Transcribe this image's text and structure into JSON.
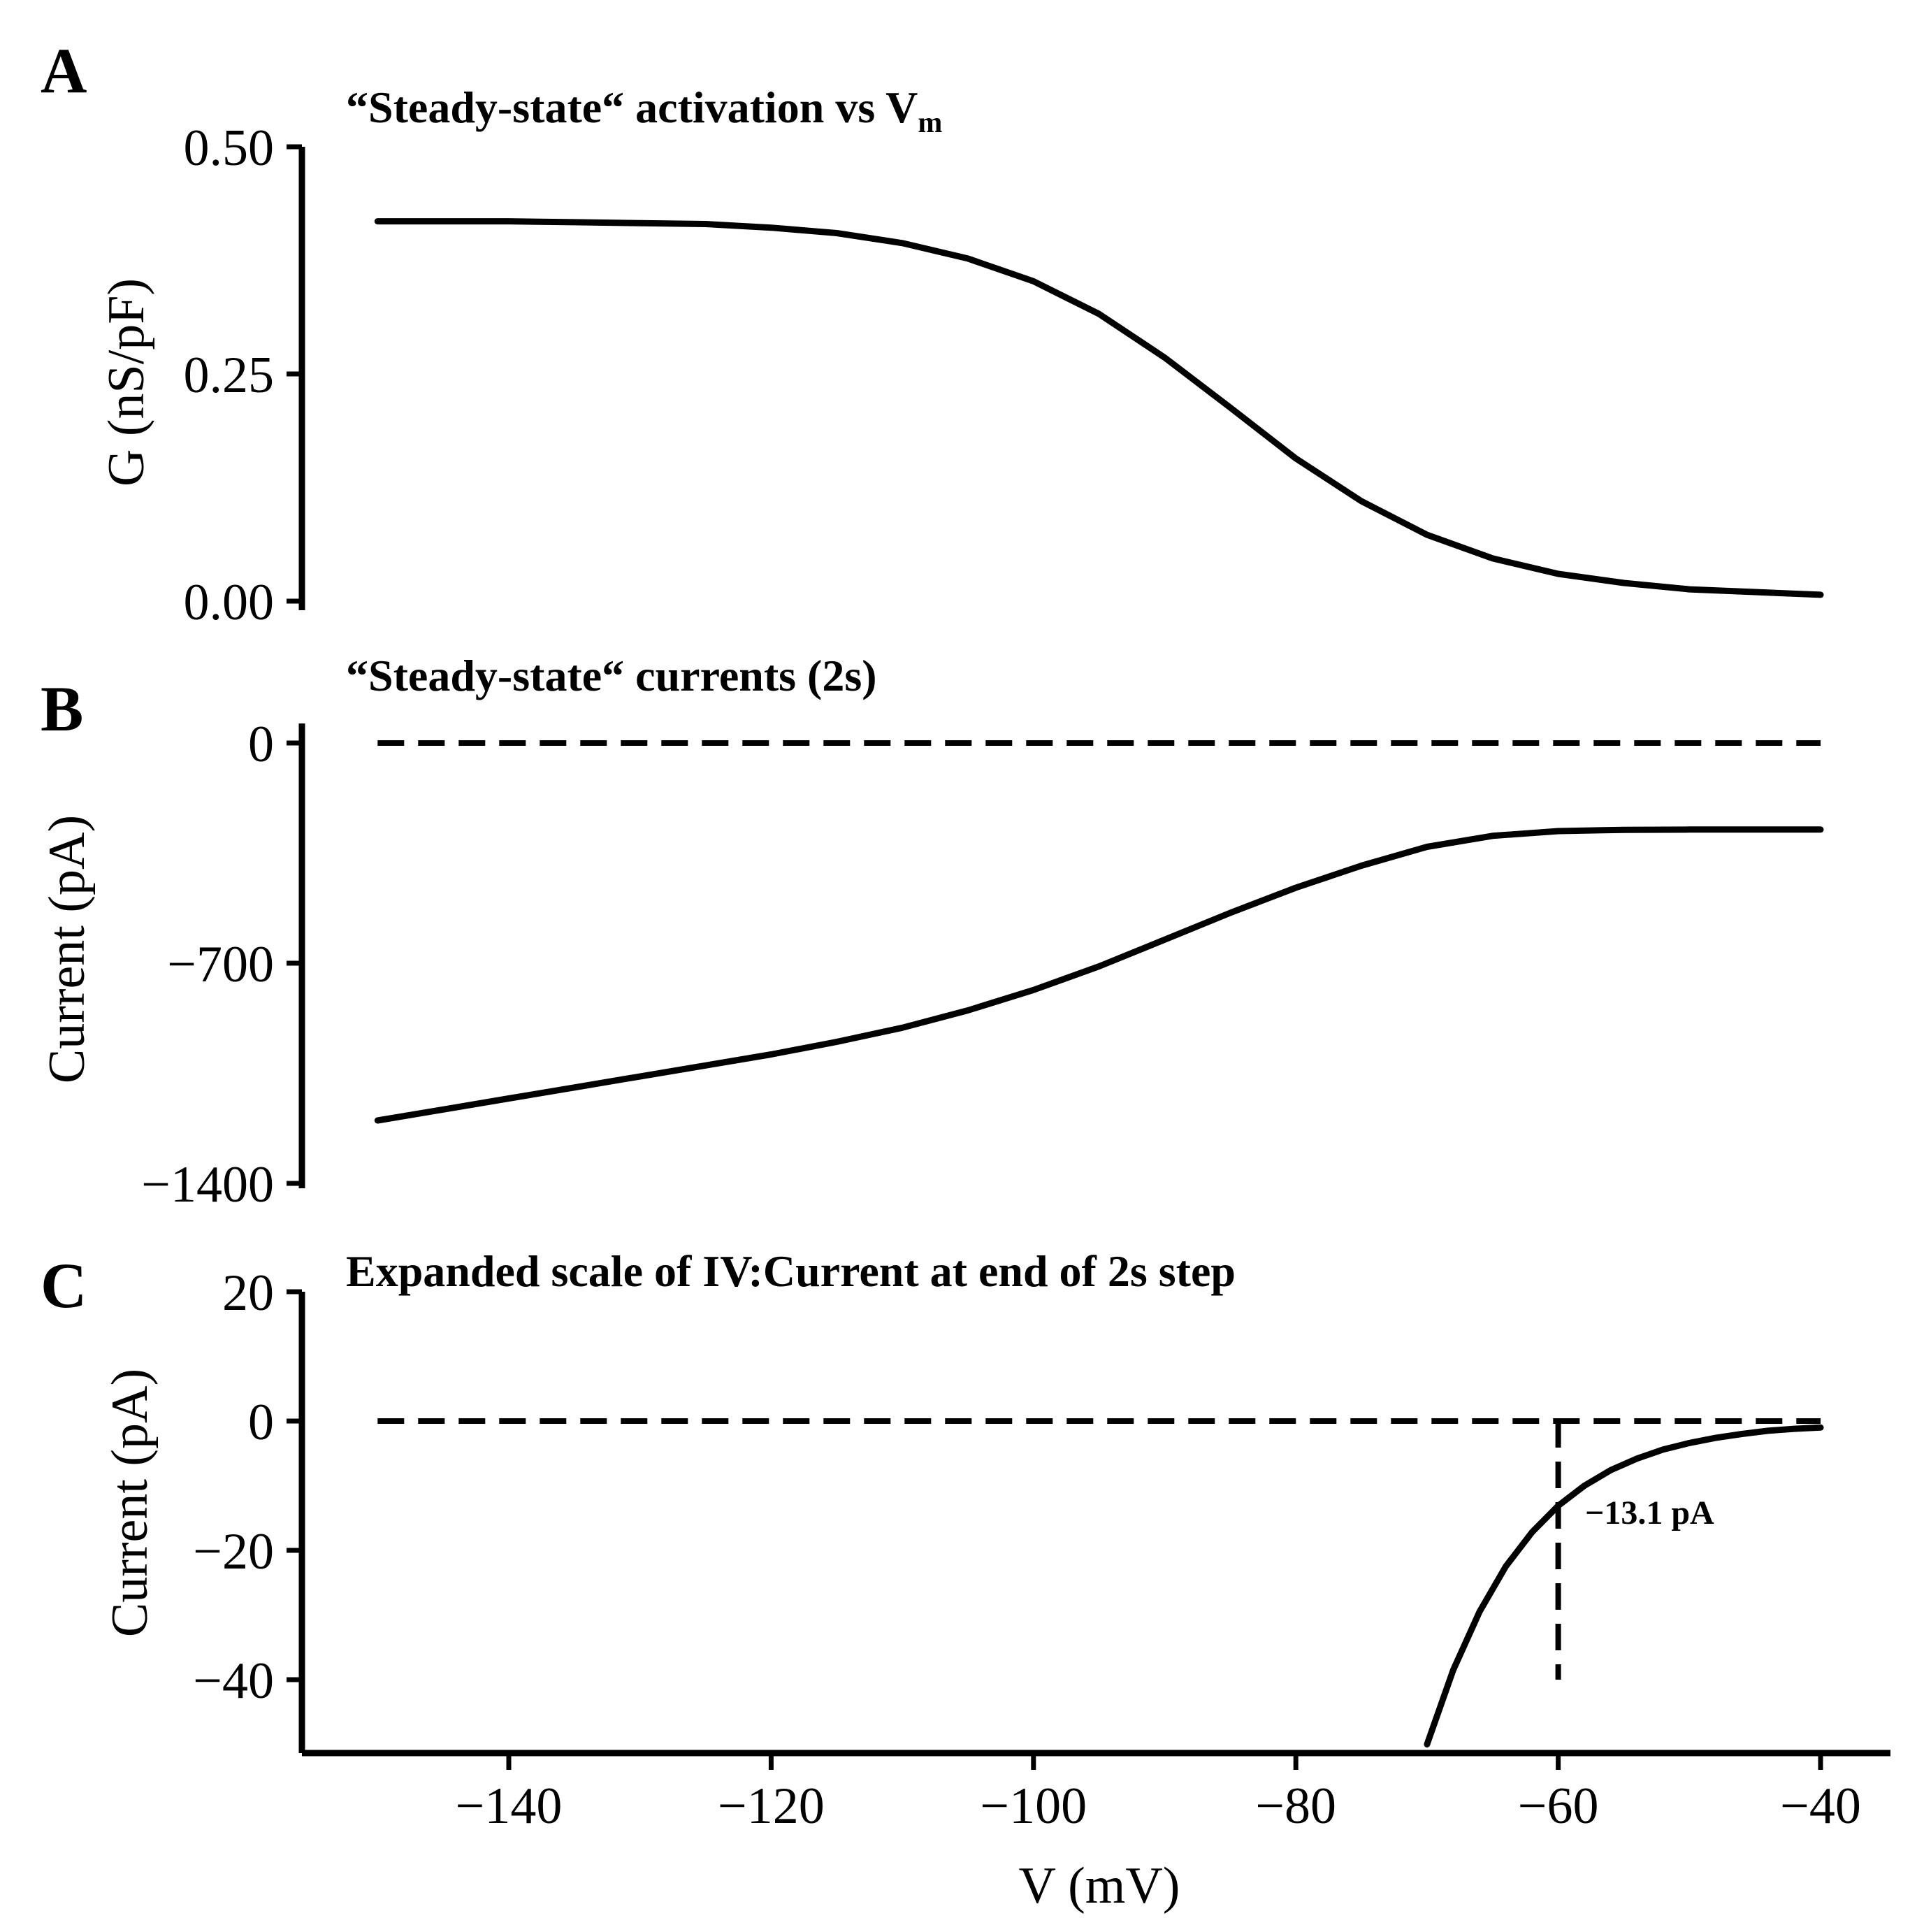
{
  "chart_data": [
    {
      "panel": "A",
      "type": "line",
      "title": "“Steady-state“ activation vs V",
      "title_subscript": "m",
      "xlabel": "",
      "ylabel": "G (nS/pF)",
      "ylim": [
        0.0,
        0.5
      ],
      "yticks": [
        0.5,
        0.25,
        0.0
      ],
      "ytick_labels": [
        "0.50",
        "0.25",
        "0.00"
      ],
      "grid": false,
      "series": [
        {
          "x": [
            -150,
            -145,
            -140,
            -135,
            -130,
            -125,
            -120,
            -115,
            -110,
            -105,
            -100,
            -95,
            -90,
            -85,
            -80,
            -75,
            -70,
            -65,
            -60,
            -55,
            -50,
            -45,
            -40
          ],
          "y": [
            0.418,
            0.418,
            0.418,
            0.417,
            0.416,
            0.415,
            0.411,
            0.405,
            0.394,
            0.377,
            0.352,
            0.316,
            0.268,
            0.213,
            0.157,
            0.11,
            0.073,
            0.047,
            0.03,
            0.02,
            0.013,
            0.01,
            0.007
          ]
        }
      ]
    },
    {
      "panel": "B",
      "type": "line",
      "title": "“Steady-state“ currents (2s)",
      "xlabel": "",
      "ylabel": "Current (pA)",
      "ylim": [
        -1400,
        50
      ],
      "yticks": [
        0,
        -700,
        -1400
      ],
      "ytick_labels": [
        "0",
        "−700",
        "−1400"
      ],
      "grid": false,
      "series": [
        {
          "x": [
            -150,
            -145,
            -140,
            -135,
            -130,
            -125,
            -120,
            -115,
            -110,
            -105,
            -100,
            -95,
            -90,
            -85,
            -80,
            -75,
            -70,
            -65,
            -60,
            -55,
            -50,
            -45,
            -40
          ],
          "y": [
            -1200,
            -1165,
            -1130,
            -1095,
            -1060,
            -1025,
            -990,
            -950,
            -905,
            -850,
            -785,
            -710,
            -625,
            -540,
            -460,
            -390,
            -330,
            -295,
            -280,
            -276,
            -275,
            -275,
            -275
          ]
        }
      ],
      "reference_line": {
        "y": 0,
        "style": "dashed"
      }
    },
    {
      "panel": "C",
      "type": "line",
      "title": "Expanded scale of IV:Current at end of 2s step",
      "xlabel": "V (mV)",
      "ylabel": "Current (pA)",
      "xlim": [
        -155,
        -37
      ],
      "ylim": [
        -52,
        20
      ],
      "xticks": [
        -140,
        -120,
        -100,
        -80,
        -60,
        -40
      ],
      "xtick_labels": [
        "−140",
        "−120",
        "−100",
        "−80",
        "−60",
        "−40"
      ],
      "yticks": [
        20,
        0,
        -20,
        -40
      ],
      "ytick_labels": [
        "20",
        "0",
        "−20",
        "−40"
      ],
      "grid": false,
      "series": [
        {
          "x": [
            -70,
            -68,
            -66,
            -64,
            -62,
            -60,
            -58,
            -56,
            -54,
            -52,
            -50,
            -48,
            -46,
            -44,
            -42,
            -40
          ],
          "y": [
            -50,
            -38.5,
            -29.5,
            -22.5,
            -17.2,
            -13.1,
            -10.0,
            -7.6,
            -5.8,
            -4.4,
            -3.4,
            -2.6,
            -2.0,
            -1.5,
            -1.2,
            -1.0
          ]
        }
      ],
      "reference_line": {
        "y": 0,
        "style": "dashed"
      },
      "marker_line": {
        "x": -60,
        "y_from": 0,
        "y_to": -40,
        "style": "dashed"
      },
      "annotation": "−13.1 pA"
    }
  ]
}
